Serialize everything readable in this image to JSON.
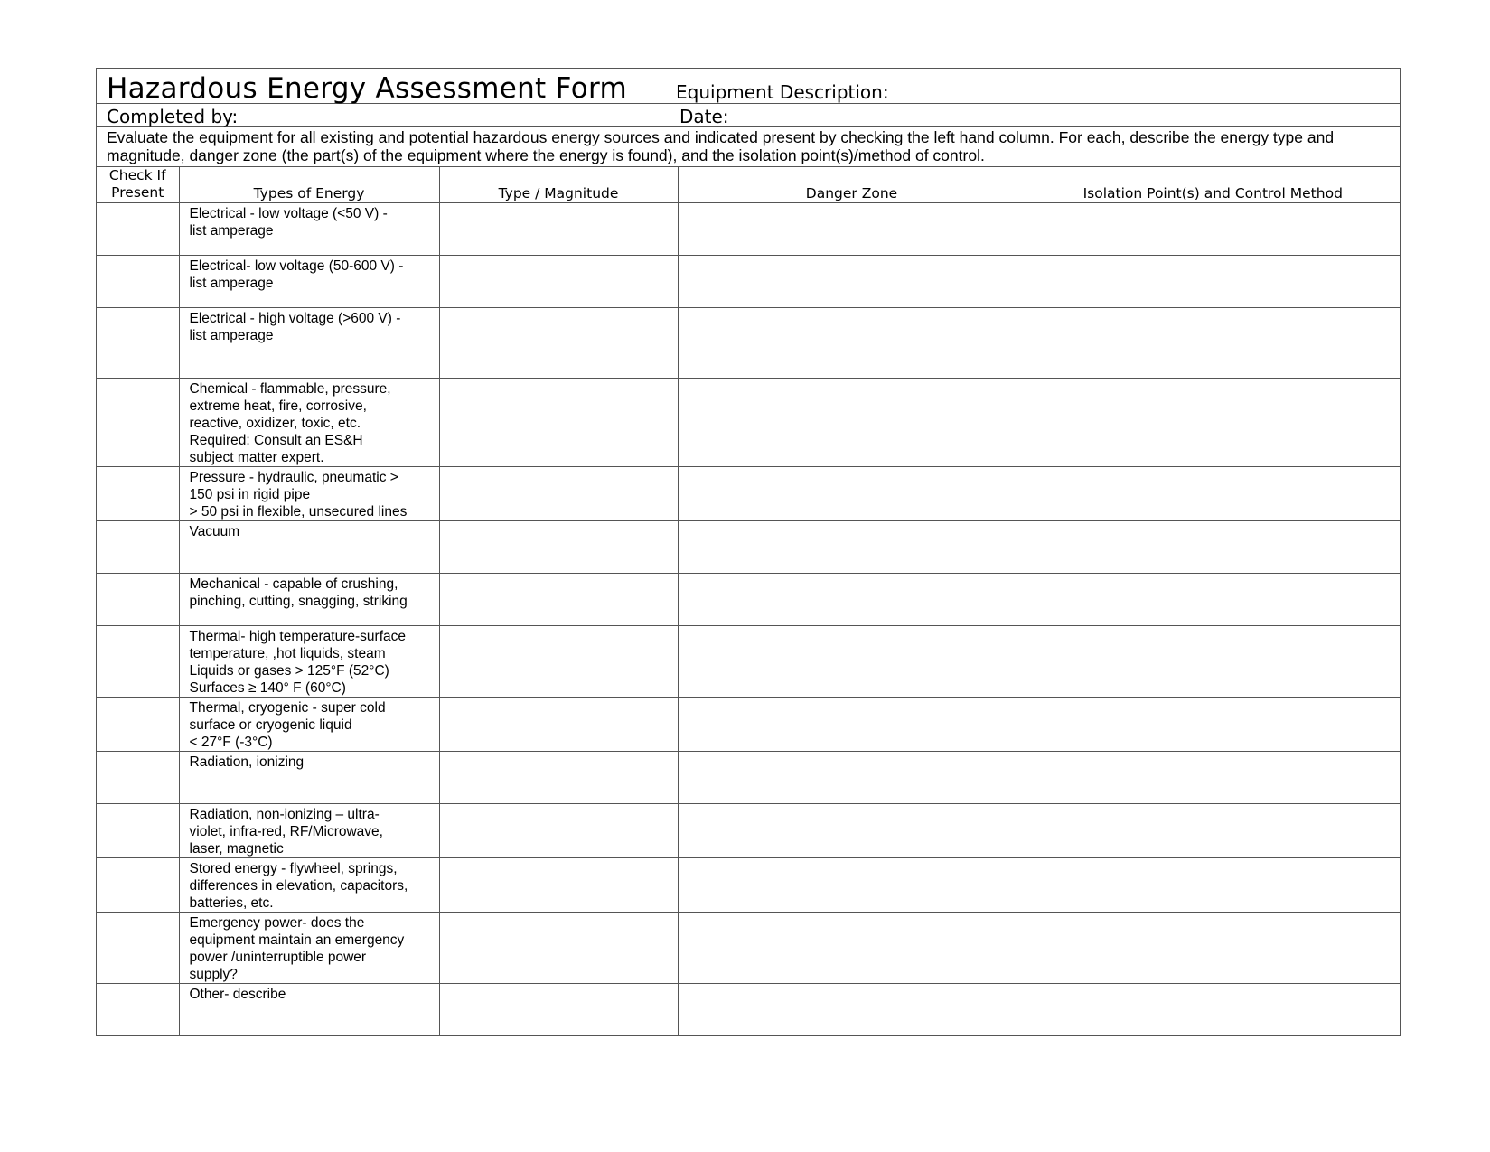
{
  "form": {
    "title": "Hazardous Energy Assessment Form",
    "equipment_label": "Equipment Description:",
    "completed_label": "Completed by:",
    "date_label": "Date:",
    "instructions": "Evaluate the equipment for all existing and potential hazardous energy sources and indicated present by checking the left hand column. For each, describe the energy type and magnitude, danger zone (the part(s) of the equipment where the energy is found), and the isolation point(s)/method of control."
  },
  "table": {
    "columns": {
      "check": "Check If\nPresent",
      "types": "Types of Energy",
      "magnitude": "Type / Magnitude",
      "danger": "Danger Zone",
      "isolation": "Isolation Point(s)  and Control Method"
    },
    "rows": [
      "Electrical - low voltage (<50 V) -\nlist amperage",
      "Electrical- low voltage (50-600 V) -\nlist amperage",
      "Electrical - high voltage (>600 V) -\nlist amperage",
      "Chemical - flammable, pressure,\nextreme heat, fire, corrosive,\nreactive, oxidizer, toxic, etc.\nRequired: Consult  an ES&H\nsubject matter expert.",
      "Pressure - hydraulic, pneumatic >\n150 psi in rigid pipe\n> 50 psi in flexible, unsecured lines",
      "Vacuum",
      "Mechanical - capable of crushing,\npinching, cutting, snagging, striking",
      "Thermal- high temperature-surface\ntemperature, ,hot liquids, steam\nLiquids or gases > 125°F (52°C)\nSurfaces ≥ 140° F (60°C)",
      "Thermal, cryogenic - super cold\nsurface or cryogenic liquid\n< 27°F (-3°C)",
      "Radiation, ionizing",
      "Radiation, non-ionizing – ultra-\nviolet, infra-red, RF/Microwave,\nlaser, magnetic",
      "Stored energy - flywheel, springs,\ndifferences in elevation, capacitors,\nbatteries, etc.",
      "Emergency power- does the\nequipment maintain an emergency\npower /uninterruptible power\nsupply?",
      "Other- describe"
    ]
  }
}
